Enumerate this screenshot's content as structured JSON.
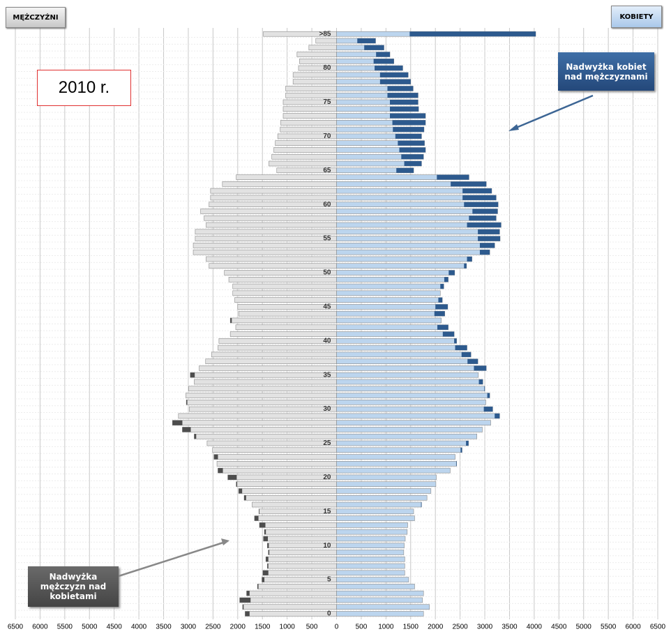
{
  "chart_data": {
    "type": "pyramid",
    "categories": [
      "0",
      null,
      null,
      null,
      null,
      "5",
      null,
      null,
      null,
      null,
      "10",
      null,
      null,
      null,
      null,
      "15",
      null,
      null,
      null,
      null,
      "20",
      null,
      null,
      null,
      null,
      "25",
      null,
      null,
      null,
      null,
      "30",
      null,
      null,
      null,
      null,
      "35",
      null,
      null,
      null,
      null,
      "40",
      null,
      null,
      null,
      null,
      "45",
      null,
      null,
      null,
      null,
      "50",
      null,
      null,
      null,
      null,
      "55",
      null,
      null,
      null,
      null,
      "60",
      null,
      null,
      null,
      null,
      "65",
      null,
      null,
      null,
      null,
      "70",
      null,
      null,
      null,
      null,
      "75",
      null,
      null,
      null,
      null,
      "80",
      null,
      null,
      null,
      null,
      ">85"
    ],
    "series": [
      {
        "name": "MĘŻCZYŹNI",
        "side": "left",
        "color": "#e2e2e2",
        "surplus_color": "#4d4d4d",
        "values": [
          1850,
          1900,
          1960,
          1820,
          1600,
          1510,
          1490,
          1400,
          1430,
          1380,
          1400,
          1480,
          1460,
          1560,
          1660,
          1570,
          1710,
          1870,
          1980,
          2030,
          2200,
          2400,
          2420,
          2480,
          2510,
          2620,
          2880,
          3120,
          3320,
          3200,
          2980,
          3040,
          3050,
          2990,
          2880,
          2960,
          2780,
          2650,
          2530,
          2400,
          2380,
          2150,
          2040,
          2150,
          1980,
          2000,
          2060,
          2100,
          2100,
          2180,
          2270,
          2580,
          2640,
          2900,
          2900,
          2860,
          2860,
          2640,
          2680,
          2750,
          2580,
          2550,
          2550,
          2310,
          2030,
          1210,
          1370,
          1310,
          1270,
          1240,
          1190,
          1140,
          1130,
          1080,
          1080,
          1080,
          1030,
          1030,
          880,
          880,
          770,
          750,
          800,
          560,
          420,
          1480
        ]
      },
      {
        "name": "KOBIETY",
        "side": "right",
        "color": "#bcd5ee",
        "surplus_color": "#2d5a8e",
        "values": [
          1760,
          1880,
          1740,
          1760,
          1580,
          1460,
          1380,
          1380,
          1380,
          1360,
          1370,
          1390,
          1430,
          1440,
          1580,
          1560,
          1720,
          1830,
          1910,
          2010,
          2020,
          2300,
          2430,
          2400,
          2540,
          2670,
          2840,
          2950,
          3120,
          3300,
          3160,
          3020,
          3100,
          3000,
          2960,
          2870,
          3030,
          2860,
          2720,
          2640,
          2430,
          2380,
          2260,
          2120,
          2190,
          2250,
          2140,
          2100,
          2170,
          2260,
          2390,
          2630,
          2740,
          3100,
          3200,
          3310,
          3300,
          3330,
          3230,
          3260,
          3270,
          3230,
          3140,
          3030,
          2680,
          1560,
          1720,
          1760,
          1800,
          1780,
          1720,
          1770,
          1800,
          1800,
          1660,
          1650,
          1650,
          1550,
          1500,
          1450,
          1340,
          1160,
          1080,
          960,
          790,
          4030
        ]
      }
    ],
    "xlim": [
      -6500,
      6500
    ],
    "xticks": [
      {
        "value": -6500,
        "label": "6500"
      },
      {
        "value": -6000,
        "label": "6000"
      },
      {
        "value": -5500,
        "label": "5500"
      },
      {
        "value": -5000,
        "label": "5000"
      },
      {
        "value": -4500,
        "label": "4500"
      },
      {
        "value": -4000,
        "label": "4000"
      },
      {
        "value": -3500,
        "label": "3500"
      },
      {
        "value": -3000,
        "label": "3000"
      },
      {
        "value": -2500,
        "label": "2500"
      },
      {
        "value": -2000,
        "label": "2000"
      },
      {
        "value": -1500,
        "label": "1500"
      },
      {
        "value": -1000,
        "label": "1000"
      },
      {
        "value": -500,
        "label": "500"
      },
      0,
      500,
      1000,
      1500,
      2000,
      2500,
      3000,
      3500,
      4000,
      4500,
      5000,
      5500,
      6000,
      6500
    ],
    "grid": true,
    "annotations": {
      "year": "2010 r.",
      "women_surplus": "Nadwyżka kobiet nad mężczyznami",
      "men_surplus": "Nadwyżka mężczyzn nad kobietami"
    }
  }
}
